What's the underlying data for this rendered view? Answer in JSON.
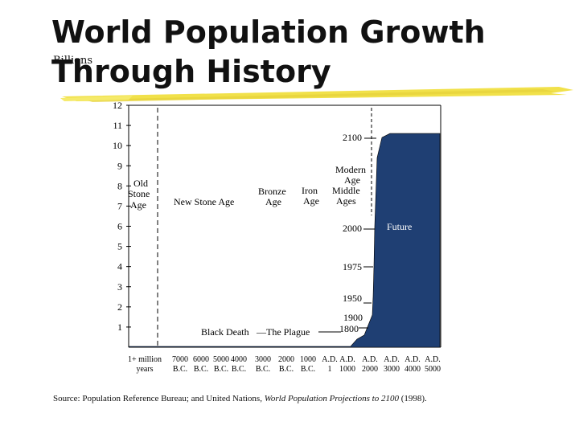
{
  "title_line1": "World Population Growth",
  "title_line2": "Through History",
  "y_axis_label": "Billions",
  "source": {
    "prefix": "Source: Population Reference Bureau; and United Nations, ",
    "italic": "World Population Projections to 2100",
    "suffix": " (1998)."
  },
  "colors": {
    "fill": "#1f3f73",
    "brush": "#f1e14a",
    "axis": "#000000"
  },
  "chart_data": {
    "type": "area",
    "title": "World Population Growth Through History",
    "ylabel": "Billions",
    "ylim": [
      0,
      12
    ],
    "y_ticks": [
      "1",
      "2",
      "3",
      "4",
      "5",
      "6",
      "7",
      "8",
      "9",
      "10",
      "11",
      "12"
    ],
    "x_tick_labels": [
      {
        "top": "1+ million",
        "bottom": "years"
      },
      {
        "top": "7000",
        "bottom": "B.C."
      },
      {
        "top": "6000",
        "bottom": "B.C."
      },
      {
        "top": "5000",
        "bottom": "B.C."
      },
      {
        "top": "4000",
        "bottom": "B.C."
      },
      {
        "top": "3000",
        "bottom": "B.C."
      },
      {
        "top": "2000",
        "bottom": "B.C."
      },
      {
        "top": "1000",
        "bottom": "B.C."
      },
      {
        "top": "A.D.",
        "bottom": "1"
      },
      {
        "top": "A.D.",
        "bottom": "1000"
      },
      {
        "top": "A.D.",
        "bottom": "2000"
      },
      {
        "top": "A.D.",
        "bottom": "3000"
      },
      {
        "top": "A.D.",
        "bottom": "4000"
      },
      {
        "top": "A.D.",
        "bottom": "5000"
      }
    ],
    "series": [
      {
        "name": "World population",
        "x_year": [
          1400,
          1700,
          1800,
          1900,
          1950,
          1975,
          2000,
          2050,
          2100,
          2300,
          5000
        ],
        "values": [
          0.4,
          0.6,
          0.9,
          1.6,
          2.5,
          4.0,
          6.0,
          9.4,
          10.4,
          10.6,
          10.6
        ]
      }
    ],
    "eras": [
      {
        "lines": [
          "Old",
          "Stone",
          "Age"
        ]
      },
      {
        "lines": [
          "New Stone Age"
        ]
      },
      {
        "lines": [
          "Bronze",
          "Age"
        ]
      },
      {
        "lines": [
          "Iron",
          "Age"
        ]
      },
      {
        "lines": [
          "Middle",
          "Ages"
        ]
      },
      {
        "lines": [
          "Modern",
          "Age"
        ]
      }
    ],
    "annotations": [
      {
        "label": "Black Death",
        "value": 1
      },
      {
        "label": "—The Plague",
        "value": 1
      },
      {
        "label": "1900",
        "value": 1.6
      },
      {
        "label": "1800",
        "value": 1
      },
      {
        "label": "1950",
        "value": 2.5
      },
      {
        "label": "1975",
        "value": 4
      },
      {
        "label": "2000",
        "value": 6
      },
      {
        "label": "2100",
        "value": 10.4
      },
      {
        "label": "Future",
        "value": 6
      }
    ]
  }
}
